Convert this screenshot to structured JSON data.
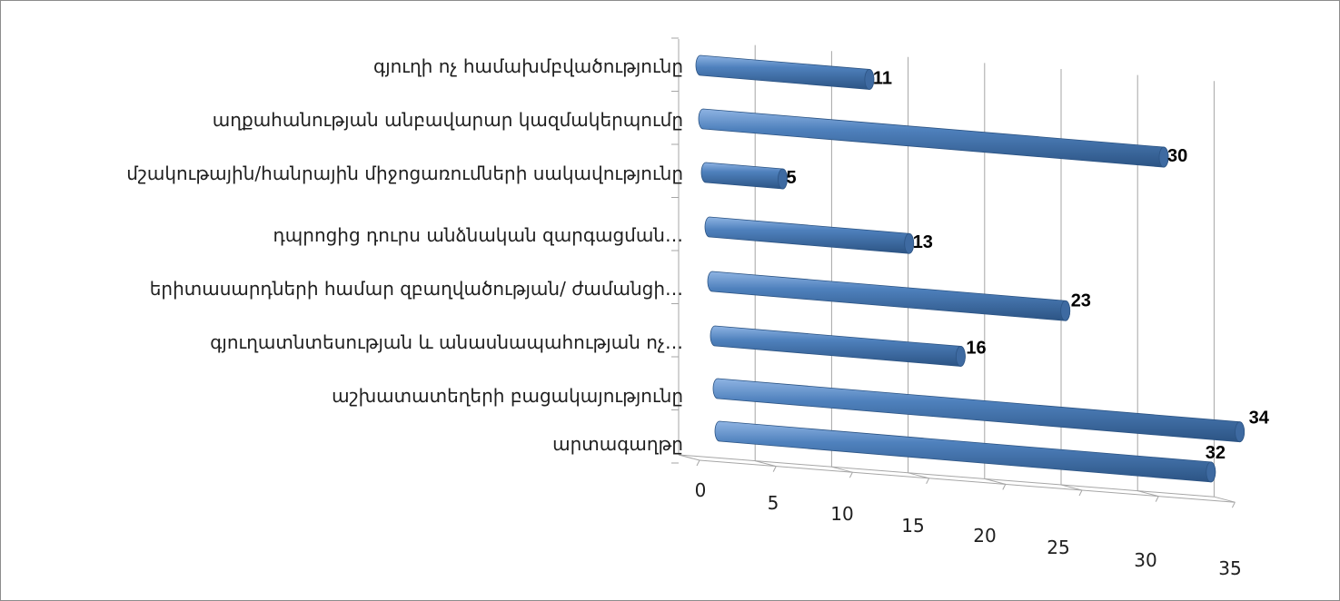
{
  "chart_data": {
    "type": "bar",
    "orientation": "horizontal",
    "style": "3d-cylinder",
    "categories": [
      "գյուղի ոչ համախմբվածությունը",
      "աղքահանության անբավարար կազմակերպումը",
      "մշակութային/հանրային միջոցառումների սակավությունը",
      "դպրոցից դուրս անձնական զարգացման…",
      "երիտասարդների համար զբաղվածության/ ժամանցի…",
      "գյուղատնտեսության և անասնապահության ոչ…",
      "աշխատատեղերի բացակայությունը",
      "արտագաղթը"
    ],
    "values": [
      11,
      30,
      5,
      13,
      23,
      16,
      34,
      32
    ],
    "data_labels": [
      "11",
      "30",
      "5",
      "13",
      "23",
      "16",
      "34",
      "32"
    ],
    "x_ticks": [
      "0",
      "5",
      "10",
      "15",
      "20",
      "25",
      "30",
      "35"
    ],
    "xlim": [
      0,
      35
    ],
    "title": "",
    "xlabel": "",
    "ylabel": "",
    "grid": true,
    "legend": "none",
    "colors": {
      "bar_light": "#8fb4e3",
      "bar_mid": "#4f81bd",
      "bar_dark": "#2c5484",
      "bar_cap": "#3e6aa1",
      "grid": "#a6a6a6",
      "border": "#8c8c8c"
    }
  }
}
